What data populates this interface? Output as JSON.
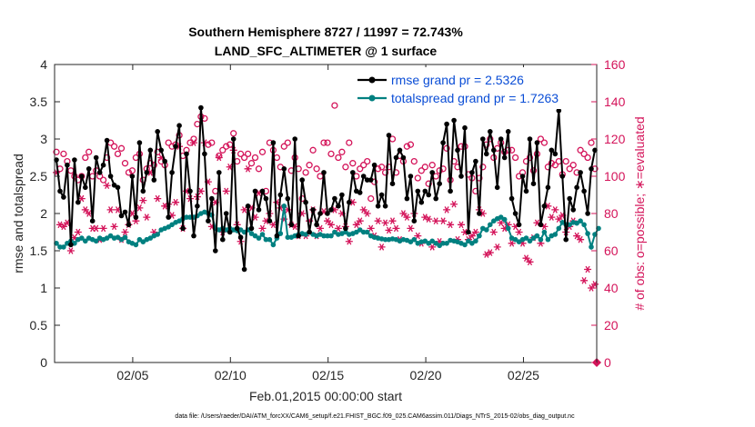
{
  "chart_data": {
    "type": "line",
    "title_line1": "Southern Hemisphere 8727 / 11997 = 72.743%",
    "title_line2": "LAND_SFC_ALTIMETER @ 1 surface",
    "xlabel": "Feb.01,2015 00:00:00 start",
    "ylabel_left": "rmse and totalspread",
    "ylabel_right": "# of obs: o=possible; ∗=evaluated",
    "footer": "data file: /Users/raeder/DAI/ATM_forcXX/CAM6_setup/f.e21.FHIST_BGC.f09_025.CAM6assim.011/Diags_NTrS_2015-02/obs_diag_output.nc",
    "xlim": [
      1,
      28.75
    ],
    "ylim_left": [
      0,
      4
    ],
    "ylim_right": [
      0,
      160
    ],
    "x_ticks": [
      5,
      10,
      15,
      20,
      25
    ],
    "x_tick_labels": [
      "02/05",
      "02/10",
      "02/15",
      "02/20",
      "02/25"
    ],
    "y_ticks_left": [
      "0",
      "0.5",
      "1",
      "1.5",
      "2",
      "2.5",
      "3",
      "3.5",
      "4"
    ],
    "y_ticks_right": [
      "0",
      "20",
      "40",
      "60",
      "80",
      "100",
      "120",
      "140",
      "160"
    ],
    "legend": [
      "rmse grand pr = 2.5326",
      "totalspread grand pr = 1.7263"
    ],
    "colors": {
      "rmse": "#000000",
      "spread": "#008080",
      "obs": "#d4145a"
    },
    "series": [
      {
        "name": "rmse",
        "values": [
          2.72,
          2.3,
          2.22,
          2.65,
          1.58,
          2.72,
          2.15,
          2.5,
          2.35,
          2.6,
          1.9,
          2.75,
          2.55,
          2.65,
          2.98,
          2.5,
          2.38,
          2.35,
          1.97,
          2.02,
          1.85,
          2.5,
          1.95,
          2.95,
          2.3,
          2.55,
          2.85,
          2.45,
          3.1,
          2.85,
          2.7,
          1.95,
          2.55,
          2.9,
          3.18,
          1.8,
          2.8,
          2.3,
          1.7,
          2.1,
          3.42,
          2.8,
          1.9,
          2.2,
          1.5,
          2.55,
          1.65,
          2.0,
          1.75,
          3.0,
          1.8,
          1.68,
          1.25,
          2.1,
          1.8,
          2.3,
          2.05,
          2.3,
          2.2,
          1.9,
          2.95,
          1.7,
          2.25,
          2.6,
          2.2,
          1.85,
          3.0,
          1.7,
          2.45,
          2.15,
          1.75,
          2.05,
          1.85,
          2.0,
          2.55,
          2.0,
          2.05,
          2.2,
          2.1,
          2.25,
          1.8,
          2.15,
          2.55,
          2.3,
          2.28,
          2.5,
          2.45,
          2.45,
          2.65,
          2.1,
          2.25,
          2.1,
          3.05,
          2.4,
          2.75,
          2.85,
          2.75,
          2.2,
          2.5,
          1.9,
          2.3,
          2.15,
          2.3,
          2.25,
          2.55,
          2.2,
          2.4,
          2.95,
          3.2,
          2.3,
          3.25,
          2.85,
          2.5,
          3.15,
          1.75,
          2.55,
          2.7,
          2.0,
          3.0,
          2.8,
          3.1,
          2.85,
          2.35,
          3.0,
          2.75,
          3.1,
          2.2,
          2.0,
          1.85,
          2.5,
          2.3,
          3.0,
          2.4,
          2.95,
          1.85,
          2.1,
          2.35,
          2.85,
          2.8,
          3.38,
          2.5,
          1.65,
          2.2,
          2.05,
          2.35,
          2.55,
          2.3,
          2.0,
          2.6,
          2.85
        ],
        "spread": [
          1.6,
          1.55,
          1.55,
          1.6,
          1.63,
          1.6,
          1.65,
          1.67,
          1.63,
          1.67,
          1.65,
          1.63,
          1.67,
          1.65,
          1.67,
          1.7,
          1.67,
          1.68,
          1.65,
          1.68,
          1.62,
          1.6,
          1.58,
          1.65,
          1.62,
          1.65,
          1.67,
          1.7,
          1.72,
          1.78,
          1.8,
          1.82,
          1.85,
          1.88,
          1.9,
          1.93,
          1.95,
          1.95,
          1.95,
          1.97,
          2.0,
          2.02,
          2.0,
          1.98,
          1.8,
          1.78,
          1.8,
          1.78,
          1.8,
          1.78,
          1.77,
          1.78,
          1.75,
          1.78,
          1.73,
          1.7,
          1.67,
          1.72,
          1.65,
          1.65,
          1.58,
          1.67,
          1.73,
          2.1,
          1.68,
          1.68,
          1.7,
          1.72,
          1.73,
          1.72,
          1.75,
          1.72,
          1.7,
          1.72,
          1.7,
          1.7,
          1.7,
          1.75,
          1.72,
          1.73,
          1.75,
          1.72,
          1.73,
          1.75,
          1.78,
          1.75,
          1.75,
          1.7,
          1.68,
          1.67,
          1.66,
          1.65,
          1.65,
          1.66,
          1.65,
          1.63,
          1.65,
          1.64,
          1.62,
          1.65,
          1.6,
          1.62,
          1.63,
          1.6,
          1.63,
          1.6,
          1.57,
          1.6,
          1.6,
          1.64,
          1.63,
          1.62,
          1.6,
          1.58,
          1.63,
          1.6,
          1.63,
          1.7,
          1.8,
          1.78,
          1.85,
          1.9,
          1.93,
          1.95,
          1.92,
          1.8,
          1.67,
          1.65,
          1.62,
          1.65,
          1.67,
          1.63,
          1.67,
          1.7,
          1.65,
          1.75,
          1.65,
          1.7,
          1.72,
          1.8,
          1.88,
          1.85,
          1.85,
          1.88,
          1.87,
          1.9,
          1.85,
          1.73,
          1.55,
          1.72,
          1.8
        ],
        "possible_obs": [
          113,
          104,
          112,
          108,
          103,
          100,
          98,
          100,
          110,
          113,
          100,
          103,
          100,
          98,
          110,
          118,
          116,
          112,
          115,
          107,
          102,
          103,
          110,
          112,
          98,
          104,
          107,
          106,
          113,
          108,
          106,
          118,
          116,
          117,
          122,
          111,
          114,
          118,
          120,
          128,
          132,
          131,
          117,
          118,
          92,
          111,
          114,
          116,
          117,
          123,
          108,
          112,
          110,
          112,
          107,
          110,
          104,
          113,
          92,
          118,
          114,
          110,
          105,
          116,
          118,
          103,
          110,
          104,
          88,
          102,
          106,
          114,
          104,
          100,
          118,
          118,
          112,
          138,
          110,
          113,
          105,
          118,
          107,
          100,
          104,
          106,
          108,
          88,
          97,
          104,
          105,
          102,
          105,
          120,
          102,
          111,
          108,
          116,
          117,
          108,
          99,
          103,
          105,
          96,
          106,
          100,
          103,
          104,
          115,
          98,
          108,
          105,
          116,
          116,
          101,
          99,
          92,
          99,
          105,
          117,
          120,
          110,
          115,
          118,
          113,
          114,
          114,
          110,
          100,
          102,
          108,
          110,
          103,
          112,
          120,
          118,
          105,
          107,
          106,
          108,
          101,
          108,
          104,
          106,
          102,
          114,
          112,
          110,
          118,
          104
        ],
        "evaluated_obs": [
          102,
          74,
          73,
          75,
          60,
          67,
          70,
          88,
          82,
          80,
          72,
          72,
          66,
          72,
          95,
          82,
          73,
          82,
          66,
          70,
          74,
          80,
          76,
          83,
          87,
          78,
          102,
          70,
          88,
          110,
          84,
          85,
          79,
          86,
          116,
          72,
          92,
          88,
          118,
          89,
          92,
          118,
          97,
          73,
          86,
          110,
          70,
          92,
          105,
          114,
          74,
          65,
          82,
          104,
          83,
          78,
          91,
          72,
          76,
          80,
          74,
          86,
          83,
          77,
          82,
          74,
          73,
          68,
          80,
          68,
          76,
          82,
          68,
          72,
          81,
          76,
          74,
          82,
          72,
          80,
          73,
          65,
          86,
          74,
          76,
          82,
          80,
          72,
          68,
          76,
          62,
          75,
          71,
          76,
          72,
          66,
          80,
          78,
          72,
          80,
          68,
          64,
          78,
          77,
          62,
          76,
          65,
          76,
          82,
          74,
          85,
          66,
          74,
          70,
          66,
          68,
          70,
          82,
          80,
          58,
          59,
          70,
          62,
          75,
          72,
          74,
          64,
          73,
          70,
          64,
          56,
          54,
          67,
          75,
          64,
          73,
          84,
          78,
          82,
          77,
          79,
          70,
          73,
          76,
          68,
          66,
          44,
          50,
          40,
          42
        ]
      }
    ]
  }
}
